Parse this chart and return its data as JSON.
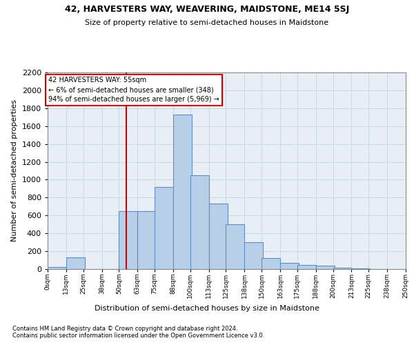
{
  "title": "42, HARVESTERS WAY, WEAVERING, MAIDSTONE, ME14 5SJ",
  "subtitle": "Size of property relative to semi-detached houses in Maidstone",
  "xlabel": "Distribution of semi-detached houses by size in Maidstone",
  "ylabel": "Number of semi-detached properties",
  "annotation_line1": "42 HARVESTERS WAY: 55sqm",
  "annotation_line2": "← 6% of semi-detached houses are smaller (348)",
  "annotation_line3": "94% of semi-detached houses are larger (5,969) →",
  "footnote1": "Contains HM Land Registry data © Crown copyright and database right 2024.",
  "footnote2": "Contains public sector information licensed under the Open Government Licence v3.0.",
  "property_size": 55,
  "bin_starts": [
    0,
    13,
    25,
    38,
    50,
    63,
    75,
    88,
    100,
    113,
    125,
    138,
    150,
    163,
    175,
    188,
    200,
    213,
    225,
    238
  ],
  "bin_labels": [
    "0sqm",
    "13sqm",
    "25sqm",
    "38sqm",
    "50sqm",
    "63sqm",
    "75sqm",
    "88sqm",
    "100sqm",
    "113sqm",
    "125sqm",
    "138sqm",
    "150sqm",
    "163sqm",
    "175sqm",
    "188sqm",
    "200sqm",
    "213sqm",
    "225sqm",
    "238sqm",
    "250sqm"
  ],
  "bar_heights": [
    20,
    130,
    0,
    0,
    650,
    650,
    920,
    1730,
    1050,
    730,
    500,
    300,
    120,
    70,
    50,
    35,
    15,
    5,
    3,
    2
  ],
  "bar_color": "#b8cfe8",
  "bar_edge_color": "#5b8ec4",
  "marker_color": "#cc0000",
  "annotation_box_edgecolor": "#cc0000",
  "ylim_max": 2200,
  "yticks": [
    0,
    200,
    400,
    600,
    800,
    1000,
    1200,
    1400,
    1600,
    1800,
    2000,
    2200
  ],
  "grid_color": "#c8d4e4",
  "bg_color": "#e8eef6",
  "title_fontsize": 9,
  "subtitle_fontsize": 8,
  "ylabel_fontsize": 8,
  "xlabel_fontsize": 8,
  "ytick_fontsize": 8,
  "xtick_fontsize": 6.5,
  "footnote_fontsize": 6
}
